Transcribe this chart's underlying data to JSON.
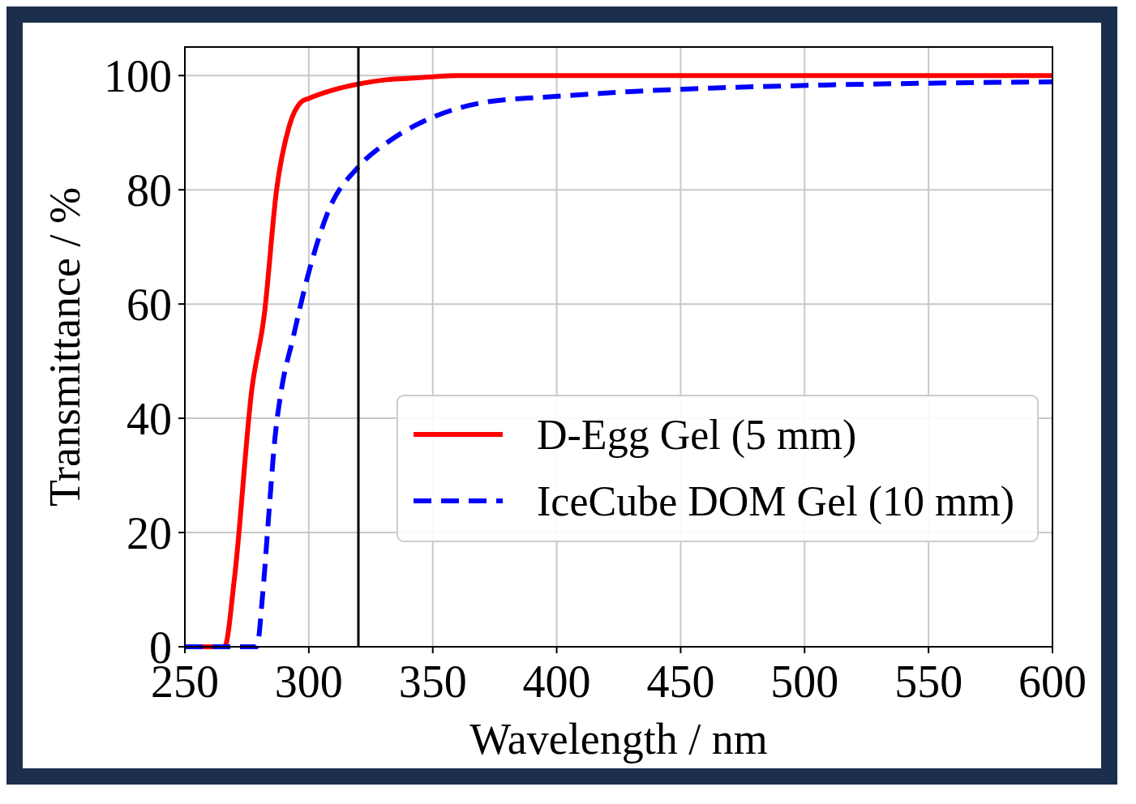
{
  "chart_data": {
    "type": "line",
    "xlabel": "Wavelength / nm",
    "ylabel": "Transmittance / %",
    "xlim": [
      250,
      600
    ],
    "ylim": [
      0,
      105
    ],
    "xticks": [
      250,
      300,
      350,
      400,
      450,
      500,
      550,
      600
    ],
    "yticks": [
      0,
      20,
      40,
      60,
      80,
      100
    ],
    "grid": true,
    "legend": "bottom right",
    "ref_lines": [
      {
        "axis": "x",
        "value": 320,
        "color": "#000000"
      }
    ],
    "series": [
      {
        "name": "D-Egg Gel (5 mm)",
        "color": "#ff0000",
        "line_style": "solid",
        "x": [
          250,
          266,
          270,
          277,
          282,
          287,
          292,
          297,
          300,
          310,
          320,
          330,
          340,
          350,
          360,
          400,
          500,
          600
        ],
        "values": [
          0,
          0,
          12,
          45,
          58,
          80,
          91,
          95.4,
          96,
          97.5,
          98.5,
          99.2,
          99.5,
          99.8,
          100,
          100,
          100,
          100
        ]
      },
      {
        "name": "IceCube DOM Gel (10 mm)",
        "color": "#0000ff",
        "line_style": "dashed",
        "x": [
          250,
          279,
          281.4,
          284,
          286.3,
          288.8,
          293.6,
          300,
          308,
          320,
          333.7,
          350,
          372,
          398,
          430,
          462,
          494,
          526,
          600
        ],
        "values": [
          0,
          0,
          9.3,
          24,
          36.4,
          44.6,
          54,
          65.6,
          76.4,
          84,
          88.9,
          92.7,
          95.4,
          96.3,
          97.2,
          97.8,
          98.2,
          98.5,
          98.9
        ]
      }
    ]
  }
}
